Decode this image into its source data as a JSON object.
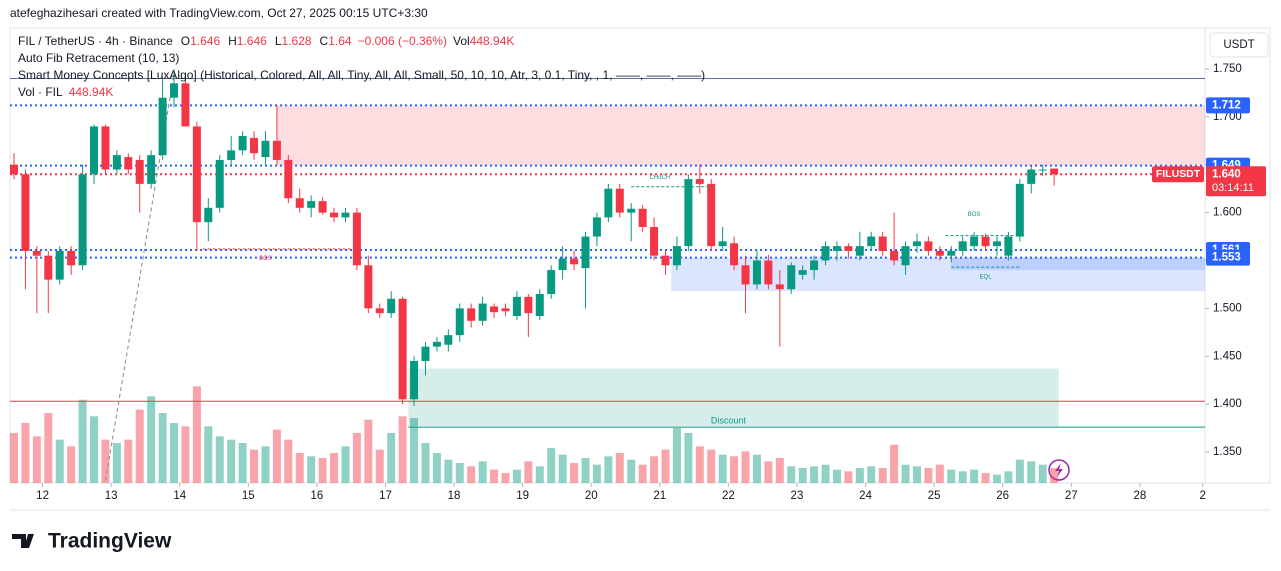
{
  "header": {
    "credit": "atefeghazihesari created with TradingView.com, Oct 27, 2025 00:15 UTC+3:30",
    "brand": "TradingView"
  },
  "chart_data": {
    "type": "candlestick",
    "symbol": "FIL / TetherUS · 4h · Binance",
    "ohlc": [
      {
        "name": "O",
        "value": 1.646
      },
      {
        "name": "H",
        "value": 1.646
      },
      {
        "name": "L",
        "value": 1.628
      },
      {
        "name": "C",
        "value": 1.64
      }
    ],
    "change": "−0.006 (−0.36%)",
    "volume_name": "Vol",
    "volume_label": "448.94K",
    "indicators": [
      "Auto Fib Retracement (10, 13)",
      "Smart Money Concepts [LuxAlgo] (Historical, Colored, All, All, Tiny, All, All, Small, 50, 10, 10, Atr, 3, 0.1, Tiny, , 1, ——, ——, ——)"
    ],
    "volume_indicator": {
      "name": "Vol · FIL",
      "value_label": "448.94K"
    },
    "currency": "USDT",
    "up_color": "#089981",
    "down_color": "#f23645",
    "candles": [
      [
        1.65,
        1.662,
        1.635,
        1.64,
        1500
      ],
      [
        1.64,
        1.645,
        1.52,
        1.56,
        1800
      ],
      [
        1.56,
        1.565,
        1.495,
        1.555,
        1400
      ],
      [
        1.555,
        1.56,
        1.495,
        1.53,
        2100
      ],
      [
        1.53,
        1.565,
        1.525,
        1.56,
        1300
      ],
      [
        1.56,
        1.565,
        1.535,
        1.545,
        1100
      ],
      [
        1.545,
        1.65,
        1.54,
        1.64,
        2500
      ],
      [
        1.64,
        1.692,
        1.63,
        1.69,
        2000
      ],
      [
        1.69,
        1.692,
        1.64,
        1.645,
        1300
      ],
      [
        1.645,
        1.665,
        1.64,
        1.66,
        1200
      ],
      [
        1.658,
        1.662,
        1.64,
        1.645,
        1300
      ],
      [
        1.655,
        1.66,
        1.6,
        1.63,
        2200
      ],
      [
        1.63,
        1.665,
        1.625,
        1.66,
        2600
      ],
      [
        1.66,
        1.74,
        1.655,
        1.72,
        2100
      ],
      [
        1.72,
        1.75,
        1.71,
        1.735,
        1800
      ],
      [
        1.735,
        1.745,
        1.69,
        1.69,
        1700
      ],
      [
        1.69,
        1.695,
        1.56,
        1.59,
        2900
      ],
      [
        1.59,
        1.615,
        1.57,
        1.605,
        1700
      ],
      [
        1.605,
        1.66,
        1.6,
        1.655,
        1400
      ],
      [
        1.655,
        1.68,
        1.65,
        1.665,
        1300
      ],
      [
        1.665,
        1.685,
        1.66,
        1.68,
        1200
      ],
      [
        1.678,
        1.685,
        1.655,
        1.662,
        1000
      ],
      [
        1.658,
        1.685,
        1.65,
        1.675,
        1100
      ],
      [
        1.675,
        1.712,
        1.65,
        1.655,
        1600
      ],
      [
        1.655,
        1.66,
        1.61,
        1.615,
        1300
      ],
      [
        1.615,
        1.625,
        1.6,
        1.605,
        900
      ],
      [
        1.605,
        1.618,
        1.595,
        1.612,
        800
      ],
      [
        1.612,
        1.616,
        1.598,
        1.6,
        750
      ],
      [
        1.6,
        1.605,
        1.59,
        1.595,
        900
      ],
      [
        1.595,
        1.605,
        1.59,
        1.6,
        1100
      ],
      [
        1.6,
        1.605,
        1.54,
        1.545,
        1500
      ],
      [
        1.545,
        1.555,
        1.495,
        1.5,
        1900
      ],
      [
        1.5,
        1.505,
        1.49,
        1.495,
        1000
      ],
      [
        1.495,
        1.518,
        1.49,
        1.51,
        1500
      ],
      [
        1.51,
        1.512,
        1.4,
        1.405,
        2000
      ],
      [
        1.405,
        1.45,
        1.398,
        1.445,
        1950
      ],
      [
        1.445,
        1.465,
        1.43,
        1.46,
        1200
      ],
      [
        1.46,
        1.47,
        1.455,
        1.465,
        900
      ],
      [
        1.462,
        1.478,
        1.455,
        1.472,
        700
      ],
      [
        1.472,
        1.505,
        1.465,
        1.5,
        600
      ],
      [
        1.5,
        1.505,
        1.48,
        1.487,
        500
      ],
      [
        1.487,
        1.512,
        1.482,
        1.505,
        650
      ],
      [
        1.502,
        1.505,
        1.49,
        1.496,
        400
      ],
      [
        1.5,
        1.505,
        1.492,
        1.497,
        300
      ],
      [
        1.492,
        1.518,
        1.488,
        1.512,
        400
      ],
      [
        1.512,
        1.515,
        1.47,
        1.495,
        650
      ],
      [
        1.492,
        1.52,
        1.488,
        1.515,
        500
      ],
      [
        1.515,
        1.545,
        1.51,
        1.54,
        1050
      ],
      [
        1.54,
        1.565,
        1.53,
        1.552,
        850
      ],
      [
        1.552,
        1.56,
        1.54,
        1.546,
        600
      ],
      [
        1.542,
        1.58,
        1.5,
        1.575,
        750
      ],
      [
        1.575,
        1.6,
        1.565,
        1.595,
        550
      ],
      [
        1.595,
        1.63,
        1.59,
        1.625,
        800
      ],
      [
        1.625,
        1.63,
        1.595,
        1.6,
        900
      ],
      [
        1.6,
        1.61,
        1.57,
        1.604,
        700
      ],
      [
        1.604,
        1.608,
        1.58,
        1.585,
        550
      ],
      [
        1.585,
        1.595,
        1.55,
        1.555,
        800
      ],
      [
        1.555,
        1.56,
        1.535,
        1.545,
        1000
      ],
      [
        1.545,
        1.575,
        1.54,
        1.565,
        1650
      ],
      [
        1.565,
        1.64,
        1.56,
        1.635,
        1500
      ],
      [
        1.635,
        1.65,
        1.62,
        1.63,
        1100
      ],
      [
        1.63,
        1.635,
        1.56,
        1.565,
        1000
      ],
      [
        1.565,
        1.585,
        1.56,
        1.57,
        850
      ],
      [
        1.568,
        1.575,
        1.54,
        1.545,
        800
      ],
      [
        1.545,
        1.555,
        1.495,
        1.525,
        950
      ],
      [
        1.525,
        1.56,
        1.52,
        1.55,
        850
      ],
      [
        1.55,
        1.556,
        1.52,
        1.525,
        650
      ],
      [
        1.525,
        1.54,
        1.46,
        1.52,
        750
      ],
      [
        1.52,
        1.548,
        1.515,
        1.545,
        500
      ],
      [
        1.535,
        1.545,
        1.53,
        1.54,
        450
      ],
      [
        1.54,
        1.555,
        1.53,
        1.55,
        500
      ],
      [
        1.55,
        1.57,
        1.545,
        1.565,
        550
      ],
      [
        1.56,
        1.57,
        1.55,
        1.565,
        400
      ],
      [
        1.565,
        1.568,
        1.552,
        1.56,
        350
      ],
      [
        1.555,
        1.58,
        1.55,
        1.565,
        450
      ],
      [
        1.565,
        1.58,
        1.56,
        1.575,
        500
      ],
      [
        1.575,
        1.58,
        1.555,
        1.56,
        450
      ],
      [
        1.56,
        1.6,
        1.545,
        1.55,
        1150
      ],
      [
        1.545,
        1.57,
        1.535,
        1.565,
        550
      ],
      [
        1.565,
        1.578,
        1.558,
        1.57,
        500
      ],
      [
        1.57,
        1.575,
        1.555,
        1.56,
        450
      ],
      [
        1.56,
        1.565,
        1.55,
        1.555,
        550
      ],
      [
        1.555,
        1.565,
        1.548,
        1.56,
        400
      ],
      [
        1.56,
        1.575,
        1.555,
        1.57,
        350
      ],
      [
        1.565,
        1.58,
        1.56,
        1.575,
        400
      ],
      [
        1.575,
        1.578,
        1.56,
        1.565,
        300
      ],
      [
        1.565,
        1.575,
        1.555,
        1.57,
        250
      ],
      [
        1.555,
        1.58,
        1.55,
        1.575,
        350
      ],
      [
        1.575,
        1.635,
        1.57,
        1.63,
        700
      ],
      [
        1.63,
        1.648,
        1.62,
        1.645,
        650
      ],
      [
        1.645,
        1.65,
        1.638,
        1.645,
        550
      ],
      [
        1.646,
        1.646,
        1.628,
        1.64,
        448.94
      ]
    ],
    "xlim": [
      -0.35,
      104.2
    ],
    "ylim": [
      1.3176,
      1.7928
    ],
    "yticks": [
      {
        "value": 1.75,
        "label": "1.750"
      },
      {
        "value": 1.7,
        "label": "1.700"
      },
      {
        "value": 1.65,
        "label": "1.650"
      },
      {
        "value": 1.6,
        "label": "1.600"
      },
      {
        "value": 1.55,
        "label": "1.550"
      },
      {
        "value": 1.5,
        "label": "1.500"
      },
      {
        "value": 1.45,
        "label": "1.450"
      },
      {
        "value": 1.4,
        "label": "1.400"
      },
      {
        "value": 1.35,
        "label": "1.350"
      }
    ],
    "xticks": [
      {
        "value": 2.5,
        "label": "12"
      },
      {
        "value": 8.5,
        "label": "13"
      },
      {
        "value": 14.5,
        "label": "14"
      },
      {
        "value": 20.5,
        "label": "15"
      },
      {
        "value": 26.5,
        "label": "16"
      },
      {
        "value": 32.5,
        "label": "17"
      },
      {
        "value": 38.5,
        "label": "18"
      },
      {
        "value": 44.5,
        "label": "19"
      },
      {
        "value": 50.5,
        "label": "20"
      },
      {
        "value": 56.5,
        "label": "21"
      },
      {
        "value": 62.5,
        "label": "22"
      },
      {
        "value": 68.5,
        "label": "23"
      },
      {
        "value": 74.5,
        "label": "24"
      },
      {
        "value": 80.5,
        "label": "25"
      },
      {
        "value": 86.5,
        "label": "26"
      },
      {
        "value": 92.5,
        "label": "27"
      },
      {
        "value": 98.5,
        "label": "28"
      },
      {
        "value": 104,
        "label": "2"
      }
    ],
    "zones": [
      {
        "from": 23,
        "to": 104.2,
        "low": 1.649,
        "high": 1.712,
        "color": "#f23645"
      },
      {
        "from": 57.5,
        "to": 104.2,
        "low": 1.518,
        "high": 1.553,
        "color": "#2962ff"
      },
      {
        "from": 82,
        "to": 104.2,
        "low": 1.54,
        "high": 1.553,
        "color": "#2962ff"
      },
      {
        "from": 34.5,
        "to": 91.4,
        "low": 1.377,
        "high": 1.437,
        "color": "#089981"
      }
    ],
    "levels": [
      {
        "value": 1.74,
        "color": "#5b6f9e",
        "style": "solid",
        "from": -0.35
      },
      {
        "value": 1.712,
        "color": "#2962ff",
        "style": "dotted",
        "from": -0.35
      },
      {
        "value": 1.649,
        "color": "#2962ff",
        "style": "dotted",
        "from": -0.35
      },
      {
        "value": 1.64,
        "color": "#f23645",
        "style": "dotted",
        "from": -0.35
      },
      {
        "value": 1.561,
        "color": "#2962ff",
        "style": "dotted",
        "from": -0.35
      },
      {
        "value": 1.553,
        "color": "#2962ff",
        "style": "dotted",
        "from": -0.35
      },
      {
        "value": 1.403,
        "color": "#f23645",
        "style": "solid",
        "from": -0.35
      },
      {
        "value": 1.376,
        "color": "#089981",
        "style": "solid",
        "from": 34.5
      }
    ],
    "annotations": [
      {
        "text": "CHoCH",
        "x": 56.5,
        "y": 1.637,
        "color": "#089981",
        "from": 54,
        "to": 61,
        "level": 1.627
      },
      {
        "text": "BOS",
        "x": 22,
        "y": 1.552,
        "color": "#f23645",
        "from": 16.5,
        "to": 29.5,
        "level": 1.562
      },
      {
        "text": "BOS",
        "x": 84,
        "y": 1.598,
        "color": "#089981",
        "from": 81.5,
        "to": 88,
        "level": 1.576
      },
      {
        "text": "EQL",
        "x": 85,
        "y": 1.533,
        "color": "#089981",
        "from": 82,
        "to": 88,
        "level": 1.543
      },
      {
        "text": "Discount",
        "x": 62.5,
        "y": 1.382,
        "color": "#089981"
      }
    ],
    "fib_line": {
      "x": [
        8,
        14
      ],
      "y": [
        1.32,
        1.745
      ]
    },
    "price_tags": [
      {
        "value": 1.712,
        "label": "1.712",
        "color": "#2962ff"
      },
      {
        "value": 1.649,
        "label": "1.649",
        "color": "#2962ff"
      },
      {
        "value": 1.64,
        "label": "1.640",
        "color": "#f23645",
        "symbol": "FILUSDT",
        "countdown": "03:14:11"
      },
      {
        "value": 1.561,
        "label": "1.561",
        "color": "#2962ff"
      },
      {
        "value": 1.553,
        "label": "1.553",
        "color": "#2962ff"
      }
    ]
  }
}
